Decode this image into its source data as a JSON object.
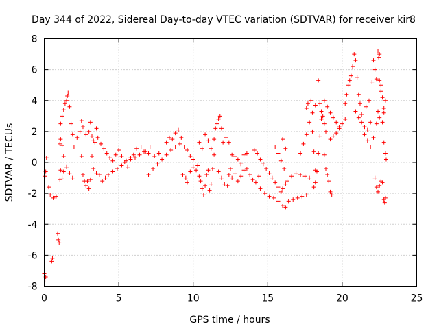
{
  "chart_data": {
    "type": "scatter",
    "title": "Day 344 of 2022, Sidereal Day-to-day VTEC variation (SDTVAR) for receiver kir8",
    "xlabel": "GPS time / hours",
    "ylabel": "SDTVAR / TECUs",
    "xlim": [
      0,
      25
    ],
    "ylim": [
      -8,
      8
    ],
    "xticks": [
      0,
      5,
      10,
      15,
      20,
      25
    ],
    "xtick_labels": [
      "0",
      "5",
      "10",
      "15",
      "20",
      "25"
    ],
    "yticks": [
      -8,
      -6,
      -4,
      -2,
      0,
      2,
      4,
      6,
      8
    ],
    "ytick_labels": [
      "-8",
      "-6",
      "-4",
      "-2",
      "0",
      "2",
      "4",
      "6",
      "8"
    ],
    "grid": true,
    "marker": "+",
    "color": "#ff0000",
    "series": [
      {
        "name": "SDTVAR",
        "points": [
          [
            0.0,
            -7.2
          ],
          [
            0.05,
            -7.6
          ],
          [
            0.1,
            -7.4
          ],
          [
            0.05,
            -0.9
          ],
          [
            0.1,
            -0.6
          ],
          [
            0.15,
            0.3
          ],
          [
            0.3,
            -1.6
          ],
          [
            0.4,
            -2.1
          ],
          [
            0.5,
            -6.4
          ],
          [
            0.55,
            -6.2
          ],
          [
            0.6,
            -2.3
          ],
          [
            0.8,
            -2.2
          ],
          [
            0.9,
            -4.6
          ],
          [
            0.95,
            -5.0
          ],
          [
            1.0,
            -5.2
          ],
          [
            1.05,
            -1.1
          ],
          [
            1.1,
            -0.5
          ],
          [
            1.2,
            -1.0
          ],
          [
            1.3,
            -0.6
          ],
          [
            1.05,
            1.2
          ],
          [
            1.1,
            2.5
          ],
          [
            1.2,
            3.0
          ],
          [
            1.3,
            3.4
          ],
          [
            1.4,
            3.8
          ],
          [
            1.5,
            4.0
          ],
          [
            1.55,
            4.3
          ],
          [
            1.6,
            4.5
          ],
          [
            1.7,
            3.6
          ],
          [
            1.8,
            2.5
          ],
          [
            1.9,
            1.8
          ],
          [
            1.1,
            1.5
          ],
          [
            1.2,
            1.1
          ],
          [
            1.3,
            0.4
          ],
          [
            1.5,
            -0.3
          ],
          [
            1.7,
            -0.7
          ],
          [
            1.9,
            -1.0
          ],
          [
            2.0,
            1.0
          ],
          [
            2.2,
            1.6
          ],
          [
            2.4,
            2.0
          ],
          [
            2.5,
            0.4
          ],
          [
            2.6,
            -0.8
          ],
          [
            2.7,
            -1.2
          ],
          [
            2.8,
            -1.5
          ],
          [
            2.9,
            -1.2
          ],
          [
            2.5,
            2.7
          ],
          [
            2.6,
            2.3
          ],
          [
            2.8,
            1.8
          ],
          [
            3.0,
            2.0
          ],
          [
            3.1,
            2.6
          ],
          [
            3.2,
            1.7
          ],
          [
            3.3,
            1.4
          ],
          [
            3.4,
            1.3
          ],
          [
            3.5,
            2.2
          ],
          [
            3.6,
            1.6
          ],
          [
            3.0,
            -1.7
          ],
          [
            3.1,
            -1.1
          ],
          [
            3.2,
            0.4
          ],
          [
            3.3,
            -0.4
          ],
          [
            3.5,
            -0.7
          ],
          [
            3.7,
            -0.8
          ],
          [
            3.8,
            1.2
          ],
          [
            4.0,
            0.9
          ],
          [
            4.2,
            0.6
          ],
          [
            4.4,
            0.3
          ],
          [
            4.6,
            0.1
          ],
          [
            4.8,
            0.5
          ],
          [
            5.0,
            0.8
          ],
          [
            5.2,
            0.4
          ],
          [
            5.4,
            0.0
          ],
          [
            5.6,
            -0.3
          ],
          [
            5.8,
            0.3
          ],
          [
            6.0,
            0.5
          ],
          [
            3.9,
            -1.2
          ],
          [
            4.1,
            -1.0
          ],
          [
            4.3,
            -0.8
          ],
          [
            4.6,
            -0.6
          ],
          [
            4.9,
            -0.4
          ],
          [
            5.2,
            -0.2
          ],
          [
            5.5,
            0.1
          ],
          [
            5.8,
            0.2
          ],
          [
            6.1,
            0.3
          ],
          [
            6.4,
            0.5
          ],
          [
            6.7,
            0.7
          ],
          [
            7.0,
            0.6
          ],
          [
            6.2,
            0.9
          ],
          [
            6.5,
            1.0
          ],
          [
            6.8,
            0.7
          ],
          [
            7.1,
            1.0
          ],
          [
            7.4,
            0.4
          ],
          [
            7.7,
            0.6
          ],
          [
            7.0,
            -0.8
          ],
          [
            7.3,
            -0.4
          ],
          [
            7.6,
            -0.1
          ],
          [
            7.9,
            0.2
          ],
          [
            8.2,
            0.5
          ],
          [
            8.5,
            0.8
          ],
          [
            8.8,
            1.0
          ],
          [
            9.1,
            1.2
          ],
          [
            9.4,
            1.0
          ],
          [
            9.6,
            0.8
          ],
          [
            9.8,
            0.4
          ],
          [
            10.0,
            0.2
          ],
          [
            8.2,
            1.3
          ],
          [
            8.4,
            1.6
          ],
          [
            8.6,
            1.5
          ],
          [
            8.8,
            1.9
          ],
          [
            9.0,
            2.1
          ],
          [
            9.2,
            1.6
          ],
          [
            9.3,
            -0.8
          ],
          [
            9.5,
            -1.0
          ],
          [
            9.6,
            -1.3
          ],
          [
            9.8,
            -0.6
          ],
          [
            10.0,
            -0.3
          ],
          [
            10.2,
            -0.5
          ],
          [
            10.3,
            -0.2
          ],
          [
            10.4,
            -0.9
          ],
          [
            10.5,
            -1.2
          ],
          [
            10.6,
            -1.7
          ],
          [
            10.7,
            -2.1
          ],
          [
            10.8,
            -1.5
          ],
          [
            10.9,
            -0.8
          ],
          [
            11.0,
            -0.5
          ],
          [
            11.1,
            -1.8
          ],
          [
            11.2,
            -1.4
          ],
          [
            11.3,
            -0.4
          ],
          [
            11.4,
            0.5
          ],
          [
            10.4,
            1.3
          ],
          [
            10.6,
            0.9
          ],
          [
            10.8,
            1.8
          ],
          [
            11.0,
            1.4
          ],
          [
            11.2,
            0.9
          ],
          [
            11.4,
            1.5
          ],
          [
            11.5,
            2.2
          ],
          [
            11.6,
            2.5
          ],
          [
            11.7,
            2.8
          ],
          [
            11.8,
            3.0
          ],
          [
            11.9,
            2.2
          ],
          [
            12.0,
            1.3
          ],
          [
            11.7,
            -0.6
          ],
          [
            11.9,
            -1.0
          ],
          [
            12.1,
            -1.4
          ],
          [
            12.3,
            -1.5
          ],
          [
            12.4,
            -0.8
          ],
          [
            12.5,
            -0.4
          ],
          [
            12.6,
            -1.0
          ],
          [
            12.8,
            -0.7
          ],
          [
            13.0,
            -1.2
          ],
          [
            13.2,
            -0.9
          ],
          [
            13.4,
            -0.5
          ],
          [
            13.6,
            -0.4
          ],
          [
            12.2,
            1.6
          ],
          [
            12.4,
            1.3
          ],
          [
            12.6,
            0.5
          ],
          [
            12.8,
            0.4
          ],
          [
            13.0,
            0.2
          ],
          [
            13.2,
            -0.1
          ],
          [
            13.4,
            0.5
          ],
          [
            13.6,
            0.6
          ],
          [
            13.8,
            -0.8
          ],
          [
            14.0,
            -1.1
          ],
          [
            14.2,
            -1.3
          ],
          [
            14.4,
            -0.9
          ],
          [
            14.1,
            0.8
          ],
          [
            14.3,
            0.6
          ],
          [
            14.5,
            0.2
          ],
          [
            14.7,
            -0.1
          ],
          [
            14.9,
            -0.4
          ],
          [
            15.1,
            -0.7
          ],
          [
            15.3,
            -1.0
          ],
          [
            15.5,
            -1.3
          ],
          [
            15.7,
            -1.6
          ],
          [
            15.9,
            -1.9
          ],
          [
            16.0,
            -1.7
          ],
          [
            16.2,
            -1.4
          ],
          [
            14.5,
            -1.7
          ],
          [
            14.8,
            -2.0
          ],
          [
            15.1,
            -2.2
          ],
          [
            15.4,
            -2.3
          ],
          [
            15.7,
            -2.5
          ],
          [
            16.0,
            -2.8
          ],
          [
            16.2,
            -2.9
          ],
          [
            16.4,
            -2.5
          ],
          [
            16.7,
            -2.4
          ],
          [
            17.0,
            -2.3
          ],
          [
            17.3,
            -2.2
          ],
          [
            17.6,
            -2.1
          ],
          [
            16.3,
            -1.2
          ],
          [
            16.6,
            -0.9
          ],
          [
            16.9,
            -0.7
          ],
          [
            17.2,
            -0.8
          ],
          [
            17.5,
            -0.9
          ],
          [
            17.8,
            -1.0
          ],
          [
            15.5,
            1.0
          ],
          [
            15.7,
            0.6
          ],
          [
            15.9,
            0.1
          ],
          [
            16.1,
            -0.4
          ],
          [
            16.0,
            1.5
          ],
          [
            16.2,
            0.9
          ],
          [
            17.2,
            0.6
          ],
          [
            17.4,
            1.2
          ],
          [
            17.6,
            1.8
          ],
          [
            17.8,
            2.6
          ],
          [
            18.0,
            3.2
          ],
          [
            18.2,
            3.7
          ],
          [
            17.6,
            3.5
          ],
          [
            17.7,
            3.8
          ],
          [
            17.9,
            4.0
          ],
          [
            18.0,
            2.0
          ],
          [
            18.1,
            0.7
          ],
          [
            18.2,
            -0.5
          ],
          [
            18.1,
            -1.6
          ],
          [
            18.2,
            -1.3
          ],
          [
            18.3,
            -0.6
          ],
          [
            18.4,
            0.6
          ],
          [
            18.5,
            1.7
          ],
          [
            18.6,
            2.8
          ],
          [
            18.4,
            5.3
          ],
          [
            18.5,
            3.8
          ],
          [
            18.6,
            3.3
          ],
          [
            18.7,
            3.0
          ],
          [
            18.8,
            2.5
          ],
          [
            18.9,
            2.0
          ],
          [
            18.8,
            4.0
          ],
          [
            19.0,
            3.6
          ],
          [
            19.2,
            3.2
          ],
          [
            19.4,
            2.9
          ],
          [
            19.6,
            2.6
          ],
          [
            19.8,
            2.3
          ],
          [
            18.8,
            0.5
          ],
          [
            18.9,
            -0.4
          ],
          [
            19.0,
            -0.8
          ],
          [
            19.1,
            -1.2
          ],
          [
            19.2,
            -1.9
          ],
          [
            19.3,
            -2.1
          ],
          [
            19.2,
            1.5
          ],
          [
            19.4,
            1.7
          ],
          [
            19.6,
            1.9
          ],
          [
            19.8,
            2.2
          ],
          [
            20.0,
            2.5
          ],
          [
            20.2,
            2.8
          ],
          [
            20.2,
            3.8
          ],
          [
            20.3,
            4.4
          ],
          [
            20.4,
            5.0
          ],
          [
            20.5,
            5.3
          ],
          [
            20.6,
            5.6
          ],
          [
            20.7,
            6.2
          ],
          [
            20.8,
            7.0
          ],
          [
            20.9,
            6.6
          ],
          [
            21.0,
            5.5
          ],
          [
            21.1,
            4.4
          ],
          [
            21.2,
            3.8
          ],
          [
            21.3,
            3.1
          ],
          [
            20.9,
            3.3
          ],
          [
            21.1,
            2.9
          ],
          [
            21.3,
            2.6
          ],
          [
            21.5,
            2.3
          ],
          [
            21.7,
            2.1
          ],
          [
            21.9,
            2.6
          ],
          [
            21.6,
            3.6
          ],
          [
            21.8,
            4.0
          ],
          [
            22.0,
            5.2
          ],
          [
            22.1,
            6.6
          ],
          [
            22.2,
            6.0
          ],
          [
            22.3,
            5.4
          ],
          [
            22.4,
            7.2
          ],
          [
            22.45,
            6.8
          ],
          [
            22.5,
            7.0
          ],
          [
            22.6,
            5.0
          ],
          [
            22.7,
            4.2
          ],
          [
            22.8,
            3.2
          ],
          [
            21.5,
            1.8
          ],
          [
            21.7,
            1.4
          ],
          [
            21.9,
            1.0
          ],
          [
            22.1,
            1.6
          ],
          [
            22.3,
            2.5
          ],
          [
            22.5,
            2.9
          ],
          [
            22.2,
            -1.0
          ],
          [
            22.3,
            -1.6
          ],
          [
            22.4,
            -1.9
          ],
          [
            22.5,
            -1.5
          ],
          [
            22.6,
            -1.2
          ],
          [
            22.7,
            -1.3
          ],
          [
            22.8,
            -2.4
          ],
          [
            22.85,
            -2.6
          ],
          [
            22.9,
            -2.3
          ],
          [
            22.8,
            1.3
          ],
          [
            22.9,
            0.6
          ],
          [
            22.95,
            0.2
          ],
          [
            22.7,
            2.6
          ],
          [
            22.8,
            3.5
          ],
          [
            22.9,
            4.0
          ],
          [
            22.6,
            4.6
          ],
          [
            22.5,
            5.3
          ],
          [
            22.4,
            3.3
          ]
        ]
      }
    ]
  }
}
